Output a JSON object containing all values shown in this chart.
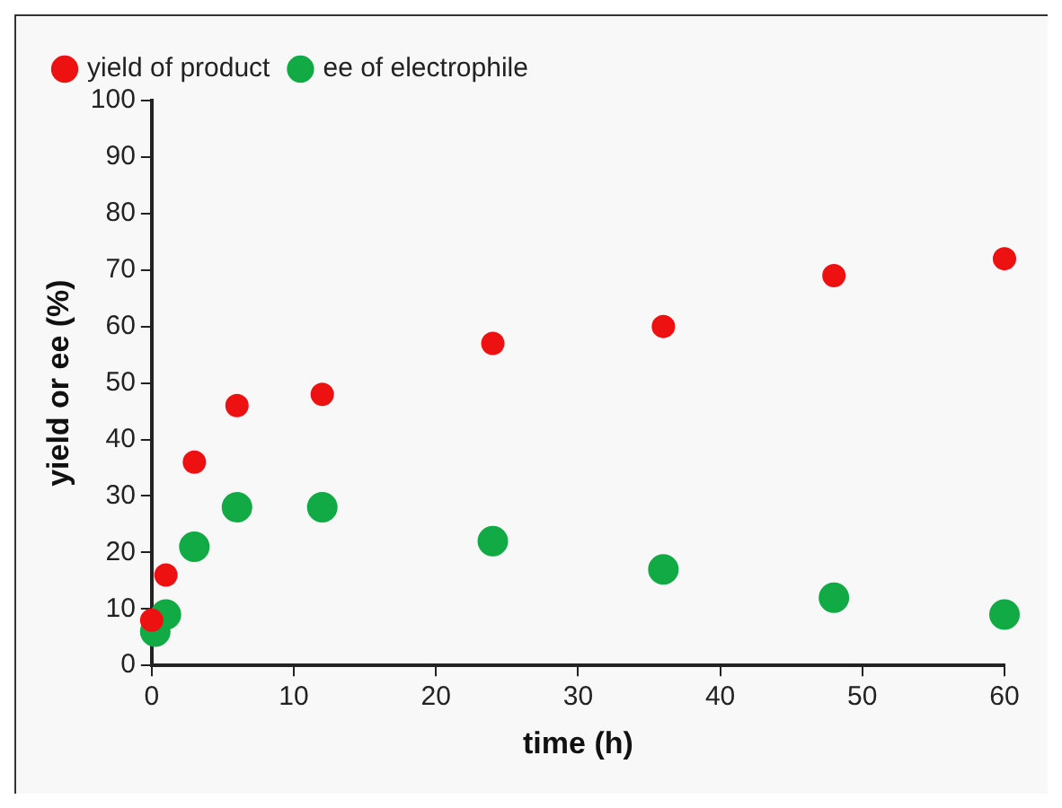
{
  "chart_data": {
    "type": "scatter",
    "xlabel": "time (h)",
    "ylabel": "yield or ee (%)",
    "xlim": [
      0,
      60
    ],
    "xticks": [
      0,
      10,
      20,
      30,
      40,
      50,
      60
    ],
    "ylim": [
      0,
      100
    ],
    "yticks": [
      0,
      10,
      20,
      30,
      40,
      50,
      60,
      70,
      80,
      90,
      100
    ],
    "grid": false,
    "legend": "top left",
    "marker": "circle",
    "series": [
      {
        "name": "yield of product",
        "color": "#ee1111",
        "x": [
          0,
          1,
          3,
          6,
          12,
          24,
          36,
          48,
          60
        ],
        "values": [
          8,
          16,
          36,
          46,
          48,
          57,
          60,
          69,
          72
        ]
      },
      {
        "name": "ee of electrophile",
        "color": "#11aa44",
        "x": [
          0.25,
          1,
          3,
          6,
          12,
          24,
          36,
          48,
          60
        ],
        "values": [
          6,
          9,
          21,
          28,
          28,
          22,
          17,
          12,
          9
        ]
      }
    ]
  }
}
